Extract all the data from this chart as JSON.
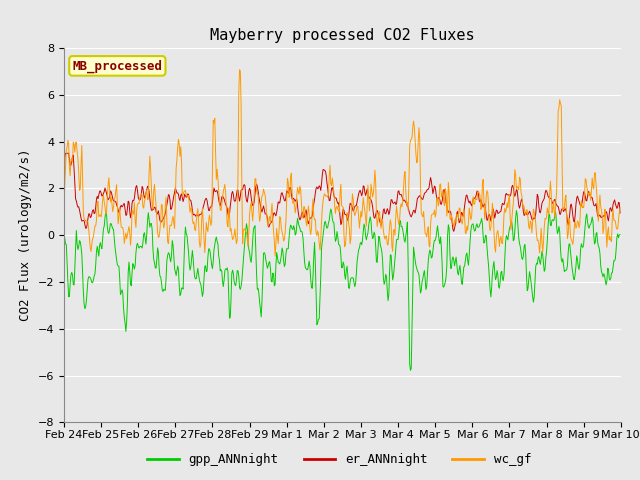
{
  "title": "Mayberry processed CO2 Fluxes",
  "ylabel": "CO2 Flux (urology/m2/s)",
  "ylim": [
    -8,
    8
  ],
  "yticks": [
    -8,
    -6,
    -4,
    -2,
    0,
    2,
    4,
    6,
    8
  ],
  "legend_label": "MB_processed",
  "legend_facecolor": "#ffffcc",
  "legend_edgecolor": "#cccc00",
  "legend_textcolor": "#8b0000",
  "line_green": "gpp_ANNnight",
  "line_red": "er_ANNnight",
  "line_orange": "wc_gf",
  "green_color": "#00cc00",
  "red_color": "#cc0000",
  "orange_color": "#ff9900",
  "fig_facecolor": "#e8e8e8",
  "axes_facecolor": "#e8e8e8",
  "grid_color": "#ffffff",
  "seed": 12,
  "n_points": 720,
  "linewidth": 0.7,
  "title_fontsize": 11,
  "label_fontsize": 9,
  "tick_fontsize": 8,
  "legend_fontsize": 9
}
